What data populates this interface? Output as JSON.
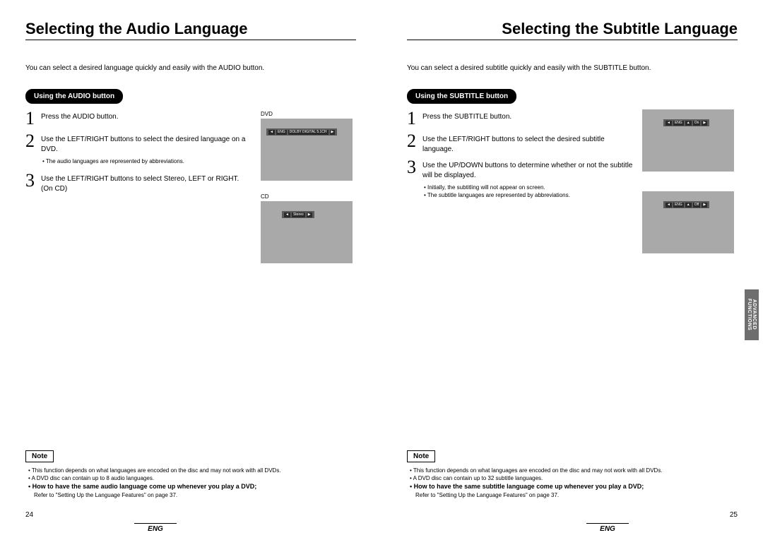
{
  "left": {
    "title": "Selecting the Audio Language",
    "intro": "You can select a desired language quickly and easily with the AUDIO button.",
    "pill": "Using the AUDIO button",
    "steps": [
      {
        "n": "1",
        "text": "Press the AUDIO button."
      },
      {
        "n": "2",
        "text": "Use the LEFT/RIGHT buttons to select the desired language on a DVD."
      },
      {
        "n": "3",
        "text": "Use the LEFT/RIGHT buttons to select Stereo, LEFT or RIGHT. (On CD)"
      }
    ],
    "sub_after_2": "The audio languages are represented by abbreviations.",
    "screen1_label": "DVD",
    "screen1_osd": [
      "◄",
      "ENG",
      "DOLBY DIGITAL 5.1CH",
      "▶"
    ],
    "screen2_label": "CD",
    "screen2_osd": [
      "◄",
      "Stereo",
      "▶"
    ],
    "note_label": "Note",
    "notes": [
      "This function depends on what languages are encoded on the disc and may not work with all DVDs.",
      "A DVD disc can contain up to 8 audio languages."
    ],
    "note_bold": "How to have the same audio language come up whenever you play a DVD;",
    "note_ref": "Refer to \"Setting Up the Language Features\" on page 37.",
    "page_num": "24",
    "lang": "ENG"
  },
  "right": {
    "title": "Selecting the Subtitle Language",
    "intro": "You can select a desired subtitle quickly and easily with the SUBTITLE button.",
    "pill": "Using the SUBTITLE button",
    "steps": [
      {
        "n": "1",
        "text": "Press the SUBTITLE button."
      },
      {
        "n": "2",
        "text": "Use the LEFT/RIGHT buttons to select the desired subtitle language."
      },
      {
        "n": "3",
        "text": "Use the UP/DOWN buttons to determine whether or not the subtitle will be displayed."
      }
    ],
    "subs_after_3": [
      "Initially, the subtitling will not appear on screen.",
      "The subtitle languages are represented by abbreviations."
    ],
    "screen1_osd": [
      "◄",
      "ENG",
      "▲",
      "On",
      "▶"
    ],
    "screen2_osd": [
      "◄",
      "ENG",
      "▲",
      "Off",
      "▶"
    ],
    "note_label": "Note",
    "notes": [
      "This function depends on what languages are encoded on the disc and may not work with all DVDs.",
      "A DVD disc can contain up to 32 subtitle languages."
    ],
    "note_bold": "How to have the same subtitle language come up whenever you play a DVD;",
    "note_ref": "Refer to \"Setting Up the Language Features\" on page 37.",
    "page_num": "25",
    "lang": "ENG",
    "side_tab": "ADVANCED FUNCTIONS"
  },
  "colors": {
    "screen_bg": "#a9a9a9",
    "osd_bg": "#5a5a5a",
    "tab_bg": "#6e6e6e",
    "text": "#000000",
    "page_bg": "#ffffff"
  }
}
